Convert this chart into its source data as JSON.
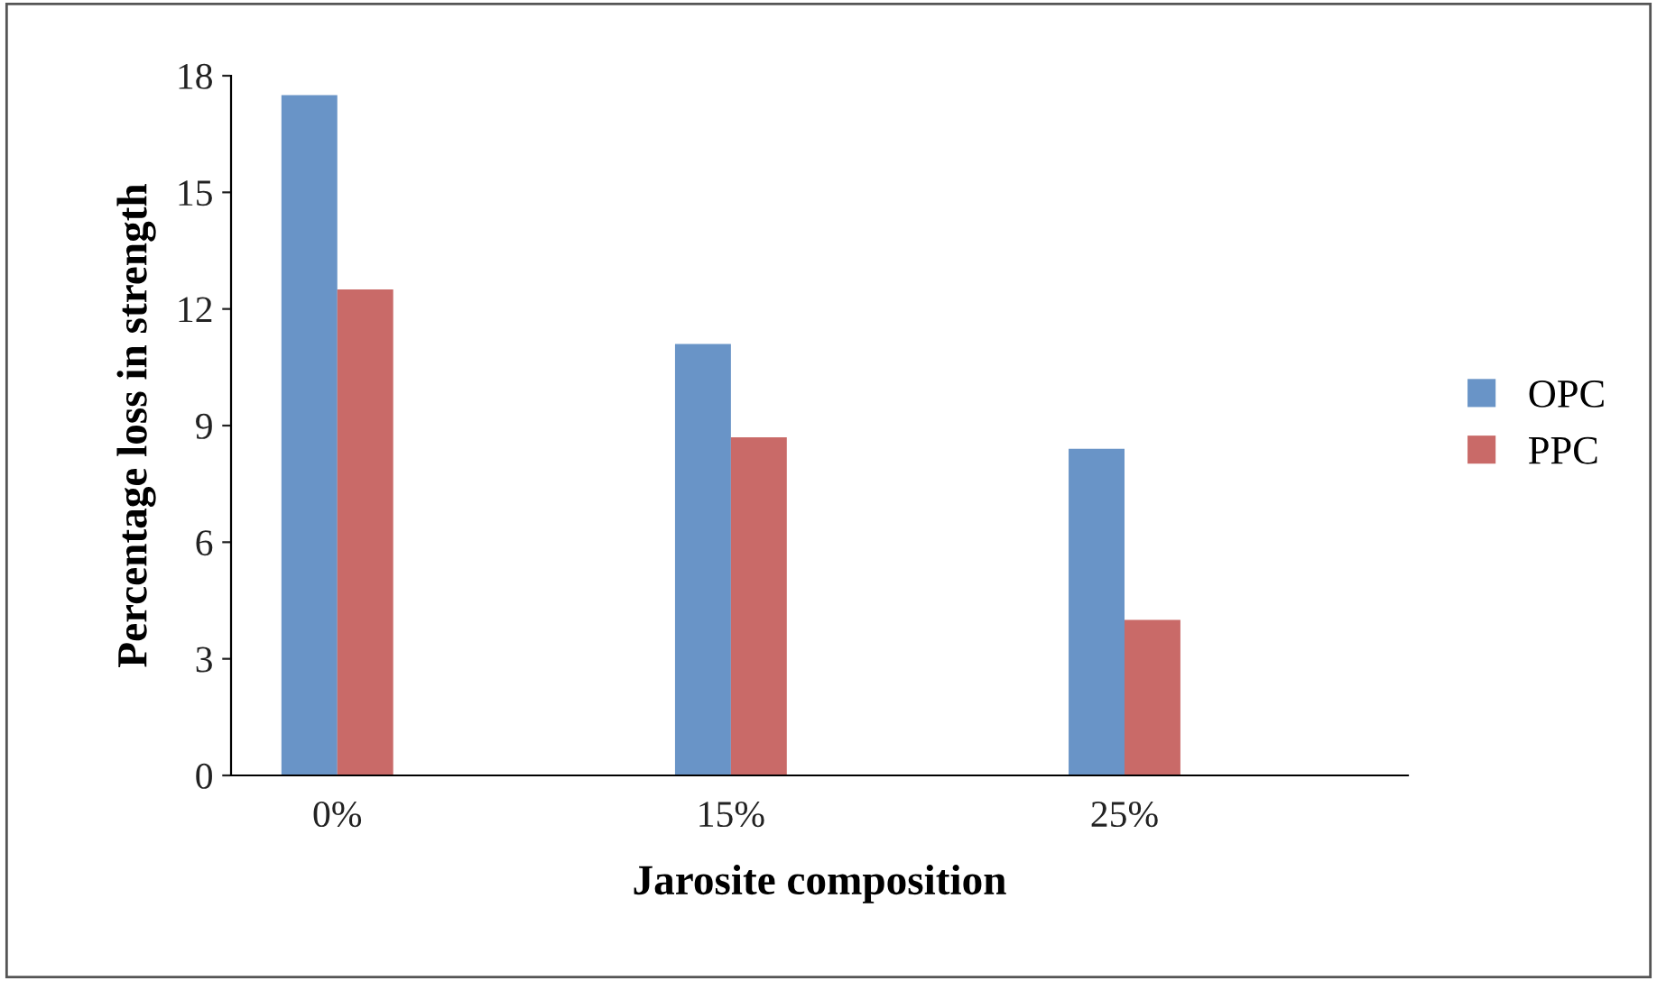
{
  "chart_data": {
    "type": "bar",
    "xlabel": "Jarosite composition",
    "ylabel": "Percentage loss in strength",
    "categories": [
      "0%",
      "15%",
      "25%"
    ],
    "series": [
      {
        "name": "OPC",
        "color": "#4f81bd",
        "values": [
          17.5,
          11.1,
          8.4
        ]
      },
      {
        "name": "PPC",
        "color": "#c0504d",
        "values": [
          12.5,
          8.7,
          4.0
        ]
      }
    ],
    "ylim": [
      0,
      18
    ],
    "yticks": [
      0,
      3,
      6,
      9,
      12,
      15,
      18
    ],
    "grid": false,
    "legend": "right"
  }
}
